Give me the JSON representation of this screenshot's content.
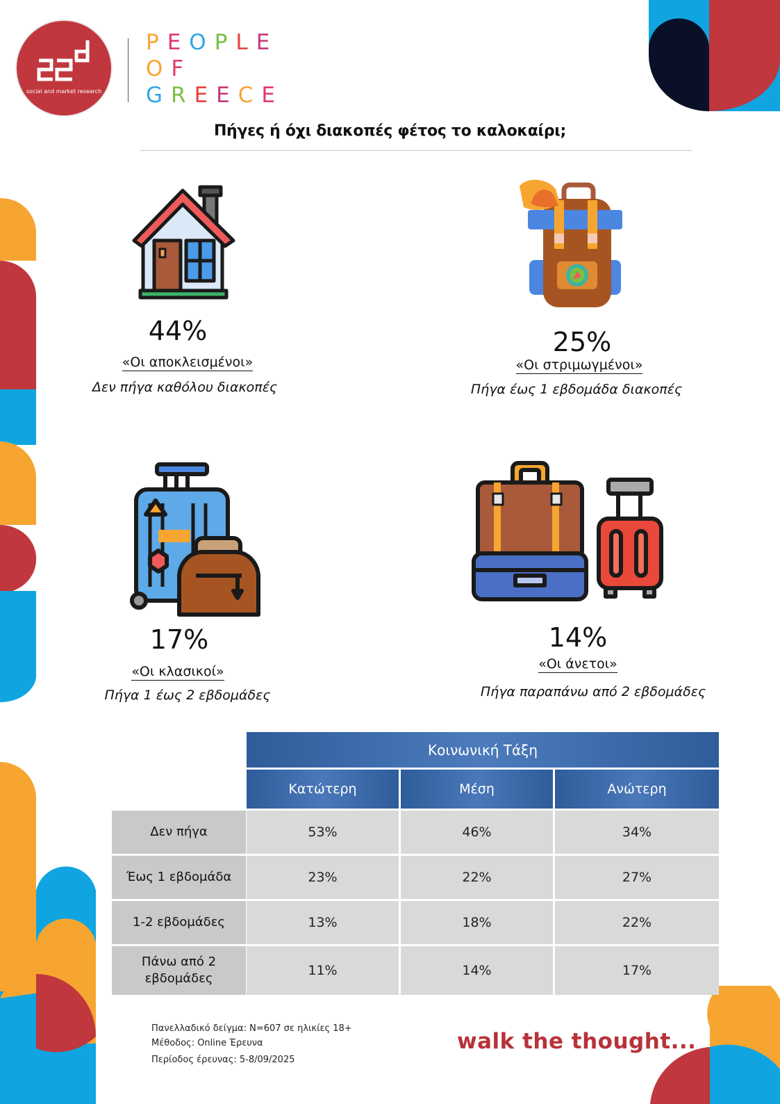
{
  "logo": {
    "tagline": "social and market research"
  },
  "brand": {
    "lines": [
      "PEOPLE",
      "OF",
      "GREECE"
    ],
    "colors": [
      "#f6a531",
      "#e03b6b",
      "#2ea6e0",
      "#7ac043",
      "#e9423a",
      "#c23a7d"
    ]
  },
  "title": "Πήγες ή όχι διακοπές φέτος το καλοκαίρι;",
  "categories": [
    {
      "icon": "house-icon",
      "percent": "44%",
      "name": "«Οι αποκλεισμένοι»",
      "description": "Δεν πήγα καθόλου διακοπές"
    },
    {
      "icon": "backpack-icon",
      "percent": "25%",
      "name": "«Οι στριμωγμένοι»",
      "description": "Πήγα έως 1 εβδομάδα διακοπές"
    },
    {
      "icon": "luggage-icon",
      "percent": "17%",
      "name": "«Οι κλασικοί»",
      "description": "Πήγα 1 έως 2 εβδομάδες"
    },
    {
      "icon": "suitcases-icon",
      "percent": "14%",
      "name": "«Οι άνετοι»",
      "description": "Πήγα παραπάνω από 2 εβδομάδες"
    }
  ],
  "table": {
    "group_header": "Κοινωνική Τάξη",
    "columns": [
      "Κατώτερη",
      "Μέση",
      "Ανώτερη"
    ],
    "rows": [
      {
        "label": "Δεν πήγα",
        "values": [
          "53%",
          "46%",
          "34%"
        ]
      },
      {
        "label": "Έως 1 εβδομάδα",
        "values": [
          "23%",
          "22%",
          "27%"
        ]
      },
      {
        "label": "1-2 εβδομάδες",
        "values": [
          "13%",
          "18%",
          "22%"
        ]
      },
      {
        "label": "Πάνω από 2 εβδομάδες",
        "values": [
          "11%",
          "14%",
          "17%"
        ]
      }
    ]
  },
  "footer": {
    "sample": "Πανελλαδικό δείγμα: Ν=607 σε ηλικίες 18+",
    "method": "Μέθοδος: Online Έρευνα",
    "period": "Περίοδος έρευνας: 5-8/09/2025"
  },
  "slogan": "walk the thought...",
  "palette": {
    "red": "#c0373d",
    "blue": "#10a5e0",
    "orange": "#f7a531",
    "navy": "#0a1028"
  }
}
